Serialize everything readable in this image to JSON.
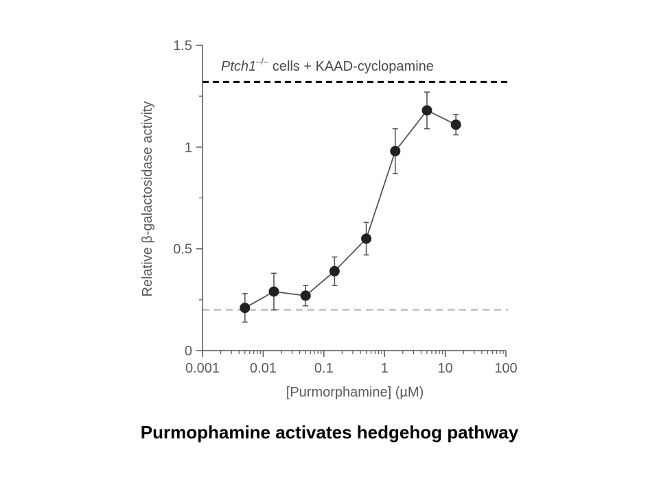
{
  "caption": "Purmophamine activates hedgehog pathway",
  "chart_data": {
    "type": "scatter",
    "title": "",
    "xlabel": "[Purmorphamine] (µM)",
    "ylabel": "Relative β-galactosidase activity",
    "x_scale": "log",
    "xlim": [
      0.001,
      100
    ],
    "ylim": [
      0,
      1.5
    ],
    "x_ticks": [
      0.001,
      0.01,
      0.1,
      1,
      10,
      100
    ],
    "x_tick_labels": [
      "0.001",
      "0.01",
      "0.1",
      "1",
      "10",
      "100"
    ],
    "y_ticks": [
      0,
      0.5,
      1,
      1.5
    ],
    "y_tick_labels": [
      "0",
      "0.5",
      "1",
      "1.5"
    ],
    "grid": false,
    "series": [
      {
        "x": [
          0.005,
          0.015,
          0.05,
          0.15,
          0.5,
          1.5,
          5,
          15
        ],
        "y": [
          0.21,
          0.29,
          0.27,
          0.39,
          0.55,
          0.98,
          1.18,
          1.11
        ],
        "error": [
          0.07,
          0.09,
          0.05,
          0.07,
          0.08,
          0.11,
          0.09,
          0.05
        ],
        "marker": "filled-circle",
        "color": "#222222",
        "line_color": "#555555"
      }
    ],
    "reference_lines": [
      {
        "y": 1.32,
        "style": "dashed",
        "color": "#000000",
        "label_italic": "Ptch1",
        "label_superscript": "–/–",
        "label_rest": " cells + KAAD-cyclopamine"
      },
      {
        "y": 0.2,
        "style": "dashed",
        "color": "#b0b0b0"
      }
    ]
  }
}
